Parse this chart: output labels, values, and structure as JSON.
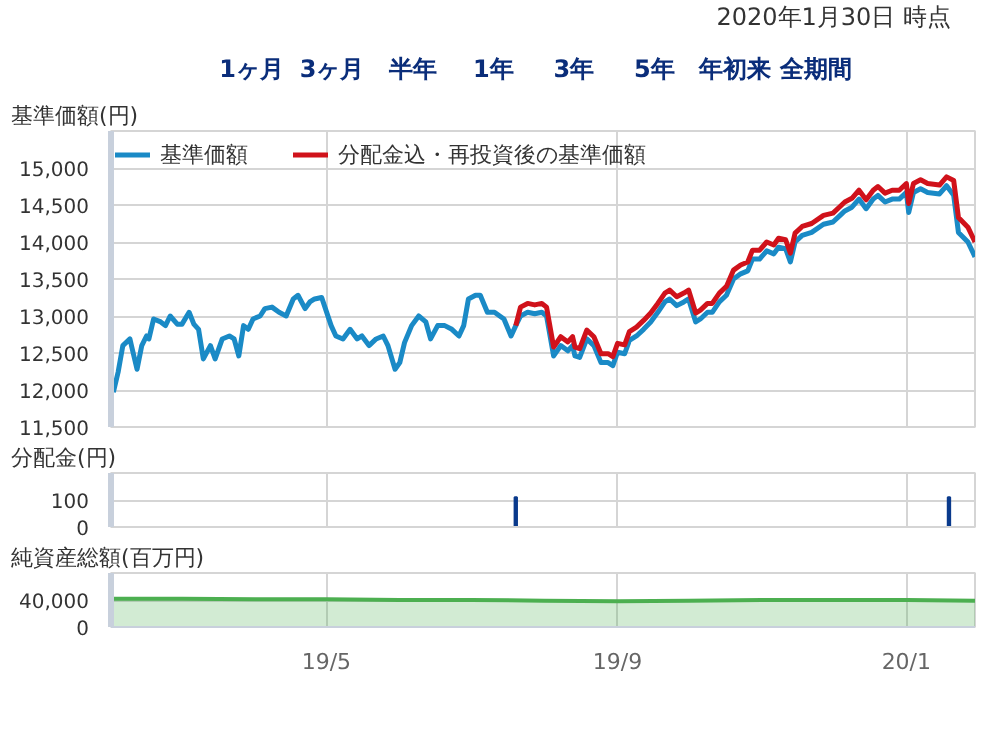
{
  "chart_data": [
    {
      "type": "line",
      "ylabel": "基準価額(円)",
      "legend": "top left",
      "grid": true,
      "tick_labels": "y",
      "annotations": [
        "2020年1月30日 時点",
        "1ヶ月",
        "3ヶ月",
        "半年",
        "1年",
        "3年",
        "5年",
        "年初来",
        "全期間"
      ],
      "xlim": [
        "2019-01-30",
        "2020-01-30"
      ],
      "xticks": [
        {
          "value": "2019-05-01",
          "label": null
        },
        {
          "value": "2019-09-01",
          "label": null
        },
        {
          "value": "2020-01-01",
          "label": null
        }
      ],
      "ylim": [
        11500,
        15500
      ],
      "yticks": [
        {
          "value": 11500,
          "label": "11,500"
        },
        {
          "value": 12000,
          "label": "12,000"
        },
        {
          "value": 12500,
          "label": "12,500"
        },
        {
          "value": 13000,
          "label": "13,000"
        },
        {
          "value": 13500,
          "label": "13,500"
        },
        {
          "value": 14000,
          "label": "14,000"
        },
        {
          "value": 14500,
          "label": "14,500"
        },
        {
          "value": 15000,
          "label": "15,000"
        }
      ],
      "x": [
        "2019-01-31",
        "2019-02-02",
        "2019-02-04",
        "2019-02-07",
        "2019-02-08",
        "2019-02-10",
        "2019-02-12",
        "2019-02-14",
        "2019-02-15",
        "2019-02-17",
        "2019-02-20",
        "2019-02-22",
        "2019-02-24",
        "2019-02-27",
        "2019-03-01",
        "2019-03-04",
        "2019-03-06",
        "2019-03-08",
        "2019-03-10",
        "2019-03-13",
        "2019-03-15",
        "2019-03-18",
        "2019-03-21",
        "2019-03-23",
        "2019-03-25",
        "2019-03-27",
        "2019-03-29",
        "2019-03-31",
        "2019-04-03",
        "2019-04-05",
        "2019-04-08",
        "2019-04-11",
        "2019-04-14",
        "2019-04-17",
        "2019-04-19",
        "2019-04-22",
        "2019-04-24",
        "2019-04-26",
        "2019-04-29",
        "2019-05-03",
        "2019-05-05",
        "2019-05-08",
        "2019-05-11",
        "2019-05-14",
        "2019-05-16",
        "2019-05-19",
        "2019-05-22",
        "2019-05-25",
        "2019-05-27",
        "2019-05-30",
        "2019-06-01",
        "2019-06-03",
        "2019-06-06",
        "2019-06-09",
        "2019-06-12",
        "2019-06-14",
        "2019-06-17",
        "2019-06-20",
        "2019-06-23",
        "2019-06-26",
        "2019-06-28",
        "2019-06-30",
        "2019-07-03",
        "2019-07-05",
        "2019-07-08",
        "2019-07-11",
        "2019-07-15",
        "2019-07-18",
        "2019-07-20",
        "2019-07-22",
        "2019-07-25",
        "2019-07-28",
        "2019-07-31",
        "2019-08-02",
        "2019-08-05",
        "2019-08-08",
        "2019-08-11",
        "2019-08-13",
        "2019-08-14",
        "2019-08-16",
        "2019-08-19",
        "2019-08-22",
        "2019-08-25",
        "2019-08-28",
        "2019-08-30",
        "2019-09-01",
        "2019-09-04",
        "2019-09-06",
        "2019-09-09",
        "2019-09-12",
        "2019-09-15",
        "2019-09-18",
        "2019-09-21",
        "2019-09-23",
        "2019-09-26",
        "2019-09-29",
        "2019-10-01",
        "2019-10-04",
        "2019-10-06",
        "2019-10-09",
        "2019-10-11",
        "2019-10-14",
        "2019-10-17",
        "2019-10-20",
        "2019-10-23",
        "2019-10-26",
        "2019-10-28",
        "2019-10-31",
        "2019-11-03",
        "2019-11-06",
        "2019-11-08",
        "2019-11-11",
        "2019-11-13",
        "2019-11-15",
        "2019-11-18",
        "2019-11-22",
        "2019-11-27",
        "2019-12-01",
        "2019-12-04",
        "2019-12-06",
        "2019-12-09",
        "2019-12-12",
        "2019-12-15",
        "2019-12-18",
        "2019-12-20",
        "2019-12-23",
        "2019-12-26",
        "2019-12-29",
        "2020-01-01",
        "2020-01-02",
        "2020-01-04",
        "2020-01-07",
        "2020-01-10",
        "2020-01-15",
        "2020-01-18",
        "2020-01-21",
        "2020-01-23",
        "2020-01-27",
        "2020-01-30"
      ],
      "series": [
        {
          "name": "基準価額",
          "color": "#1a8ac6",
          "values": [
            11970,
            12240,
            12600,
            12690,
            12550,
            12280,
            12600,
            12730,
            12690,
            12960,
            12920,
            12870,
            13000,
            12890,
            12890,
            13050,
            12890,
            12820,
            12420,
            12600,
            12420,
            12690,
            12730,
            12690,
            12460,
            12870,
            12820,
            12960,
            13000,
            13100,
            13120,
            13050,
            13000,
            13230,
            13280,
            13100,
            13190,
            13230,
            13250,
            12870,
            12730,
            12690,
            12820,
            12690,
            12730,
            12600,
            12690,
            12730,
            12600,
            12280,
            12370,
            12640,
            12870,
            13000,
            12920,
            12690,
            12870,
            12870,
            12820,
            12730,
            12870,
            13230,
            13280,
            13280,
            13050,
            13050,
            12960,
            12730,
            12870,
            13000,
            13050,
            13030,
            13050,
            13000,
            12460,
            12600,
            12530,
            12600,
            12460,
            12440,
            12690,
            12600,
            12370,
            12370,
            12330,
            12510,
            12490,
            12670,
            12730,
            12820,
            12920,
            13050,
            13190,
            13230,
            13140,
            13190,
            13230,
            12920,
            12960,
            13050,
            13050,
            13190,
            13280,
            13500,
            13570,
            13610,
            13770,
            13770,
            13880,
            13840,
            13930,
            13910,
            13730,
            14000,
            14090,
            14130,
            14240,
            14270,
            14360,
            14420,
            14470,
            14580,
            14450,
            14580,
            14630,
            14540,
            14580,
            14580,
            14670,
            14400,
            14670,
            14720,
            14670,
            14650,
            14760,
            14630,
            14130,
            14000,
            13800
          ]
        },
        {
          "name": "分配金込・再投資後の基準価額",
          "color": "#d0121b",
          "x": [
            "2019-07-20",
            "2019-07-22",
            "2019-07-25",
            "2019-07-28",
            "2019-07-31",
            "2019-08-02",
            "2019-08-05",
            "2019-08-08",
            "2019-08-11",
            "2019-08-13",
            "2019-08-14",
            "2019-08-16",
            "2019-08-19",
            "2019-08-22",
            "2019-08-25",
            "2019-08-28",
            "2019-08-30",
            "2019-09-01",
            "2019-09-04",
            "2019-09-06",
            "2019-09-09",
            "2019-09-12",
            "2019-09-15",
            "2019-09-18",
            "2019-09-21",
            "2019-09-23",
            "2019-09-26",
            "2019-09-29",
            "2019-10-01",
            "2019-10-04",
            "2019-10-06",
            "2019-10-09",
            "2019-10-11",
            "2019-10-14",
            "2019-10-17",
            "2019-10-20",
            "2019-10-23",
            "2019-10-26",
            "2019-10-28",
            "2019-10-31",
            "2019-11-03",
            "2019-11-06",
            "2019-11-08",
            "2019-11-11",
            "2019-11-13",
            "2019-11-15",
            "2019-11-18",
            "2019-11-22",
            "2019-11-27",
            "2019-12-01",
            "2019-12-04",
            "2019-12-06",
            "2019-12-09",
            "2019-12-12",
            "2019-12-15",
            "2019-12-18",
            "2019-12-20",
            "2019-12-23",
            "2019-12-26",
            "2019-12-29",
            "2020-01-01",
            "2020-01-02",
            "2020-01-04",
            "2020-01-07",
            "2020-01-10",
            "2020-01-15",
            "2020-01-18",
            "2020-01-21",
            "2020-01-23",
            "2020-01-27",
            "2020-01-30"
          ],
          "values": [
            12870,
            13120,
            13170,
            13150,
            13170,
            13120,
            12580,
            12720,
            12650,
            12720,
            12580,
            12560,
            12810,
            12720,
            12490,
            12490,
            12450,
            12630,
            12610,
            12790,
            12850,
            12940,
            13040,
            13170,
            13310,
            13350,
            13260,
            13310,
            13350,
            13040,
            13080,
            13170,
            13170,
            13310,
            13400,
            13620,
            13690,
            13730,
            13890,
            13890,
            14000,
            13960,
            14050,
            14030,
            13850,
            14120,
            14210,
            14250,
            14360,
            14390,
            14480,
            14540,
            14590,
            14700,
            14570,
            14700,
            14750,
            14660,
            14700,
            14700,
            14790,
            14520,
            14790,
            14840,
            14790,
            14770,
            14880,
            14830,
            14330,
            14200,
            14000
          ]
        }
      ]
    },
    {
      "type": "bar",
      "ylabel": "分配金(円)",
      "grid": true,
      "tick_labels": "y",
      "xlim": [
        "2019-01-30",
        "2020-01-30"
      ],
      "xticks": [
        {
          "value": "2019-05-01",
          "label": null
        },
        {
          "value": "2019-09-01",
          "label": null
        },
        {
          "value": "2020-01-01",
          "label": null
        }
      ],
      "ylim": [
        0,
        200
      ],
      "yticks": [
        0,
        100
      ],
      "x": [
        "2019-07-20",
        "2020-01-19"
      ],
      "values": [
        110,
        110
      ],
      "color": "#0a3a8c"
    },
    {
      "type": "area",
      "ylabel": "純資産総額(百万円)",
      "grid": true,
      "xlim": [
        "2019-01-30",
        "2020-01-30"
      ],
      "xticks": [
        {
          "value": "2019-05-01",
          "label": "19/5"
        },
        {
          "value": "2019-09-01",
          "label": "19/9"
        },
        {
          "value": "2020-01-01",
          "label": "20/1"
        }
      ],
      "ylim": [
        0,
        80000
      ],
      "yticks": [
        0,
        {
          "value": 40000,
          "label": "40,000"
        }
      ],
      "x": [
        "2019-01-31",
        "2019-03-01",
        "2019-04-01",
        "2019-05-01",
        "2019-06-01",
        "2019-07-01",
        "2019-08-01",
        "2019-09-01",
        "2019-10-01",
        "2019-11-01",
        "2019-12-01",
        "2020-01-01",
        "2020-01-30"
      ],
      "values": [
        42000,
        42000,
        41000,
        41000,
        40000,
        40000,
        39000,
        38000,
        39000,
        40000,
        40000,
        40000,
        39000
      ],
      "color": "#4caf50"
    }
  ]
}
